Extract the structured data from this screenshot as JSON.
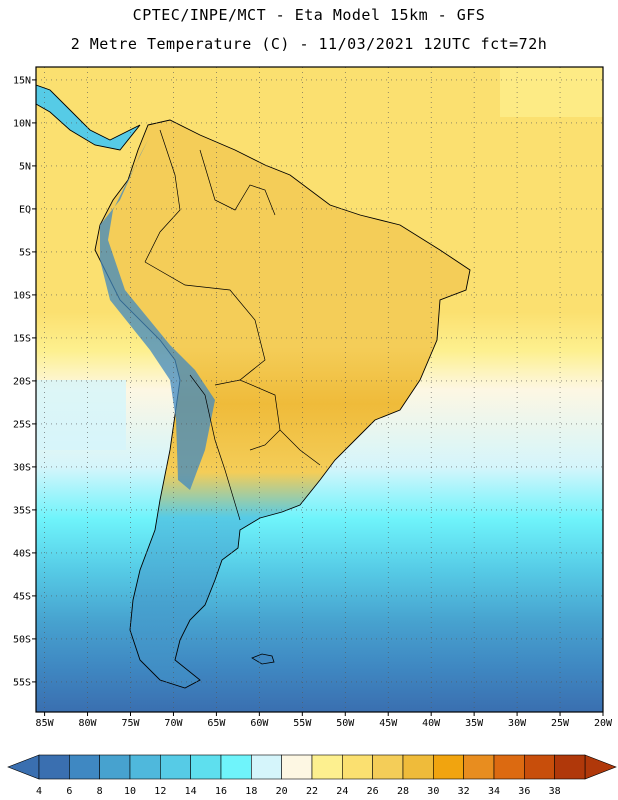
{
  "title": {
    "line1": "CPTEC/INPE/MCT -  Eta Model 15km - GFS",
    "line2": "2 Metre Temperature (C) - 11/03/2021 12UTC fct=72h"
  },
  "map": {
    "lat_labels": [
      "15N",
      "10N",
      "5N",
      "EQ",
      "5S",
      "10S",
      "15S",
      "20S",
      "25S",
      "30S",
      "35S",
      "40S",
      "45S",
      "50S",
      "55S"
    ],
    "lat_values": [
      15,
      10,
      5,
      0,
      -5,
      -10,
      -15,
      -20,
      -25,
      -30,
      -35,
      -40,
      -45,
      -50,
      -55
    ],
    "lon_labels": [
      "85W",
      "80W",
      "75W",
      "70W",
      "65W",
      "60W",
      "55W",
      "50W",
      "45W",
      "40W",
      "35W",
      "30W",
      "25W",
      "20W"
    ],
    "lon_values": [
      -85,
      -80,
      -75,
      -70,
      -65,
      -60,
      -55,
      -50,
      -45,
      -40,
      -35,
      -30,
      -25,
      -20
    ],
    "lat_range": [
      -58.5,
      16.5
    ],
    "lon_range": [
      -86,
      -20
    ],
    "grid": true
  },
  "colorbar": {
    "labels": [
      "4",
      "6",
      "8",
      "10",
      "12",
      "14",
      "16",
      "18",
      "20",
      "22",
      "24",
      "26",
      "28",
      "30",
      "32",
      "34",
      "36",
      "38"
    ],
    "colors": [
      "#3a6fb0",
      "#3f88c2",
      "#47a2cf",
      "#4fb8dc",
      "#56cbe6",
      "#5edfee",
      "#6ff4fb",
      "#d5f5fb",
      "#fdf7e3",
      "#fdf08f",
      "#fbe070",
      "#f4cd58",
      "#efbb3a",
      "#f1a40f",
      "#e88d1f",
      "#dc6a11",
      "#c84e0b",
      "#b0380a"
    ]
  }
}
